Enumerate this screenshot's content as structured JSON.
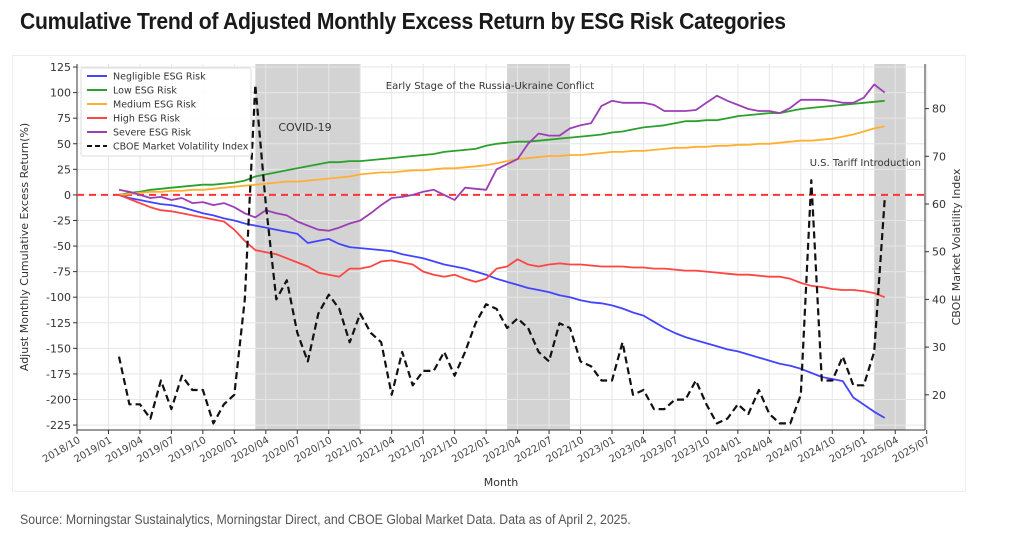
{
  "title": "Cumulative Trend of Adjusted Monthly Excess Return by ESG Risk Categories",
  "source": "Source: Morningstar Sustainalytics, Morningstar Direct, and CBOE Global Market Data. Data as of April 2, 2025.",
  "chart_data": {
    "type": "line",
    "xlabel": "Month",
    "ylabel": "Adjust Monthly Cumulative Excess Return(%)",
    "y2label": "CBOE Market Volatility Index",
    "x_start": "2019/02",
    "x_end": "2025/03",
    "x_ticks": [
      "2018/10",
      "2019/01",
      "2019/04",
      "2019/07",
      "2019/10",
      "2020/01",
      "2020/04",
      "2020/07",
      "2020/10",
      "2021/01",
      "2021/04",
      "2021/07",
      "2021/10",
      "2022/01",
      "2022/04",
      "2022/07",
      "2022/10",
      "2023/01",
      "2023/04",
      "2023/07",
      "2023/10",
      "2024/01",
      "2024/04",
      "2024/07",
      "2024/10",
      "2025/01",
      "2025/04",
      "2025/07"
    ],
    "ylim": [
      -230,
      125
    ],
    "y_ticks": [
      125,
      100,
      75,
      50,
      25,
      0,
      -25,
      -50,
      -75,
      -100,
      -125,
      -150,
      -175,
      -200,
      -225
    ],
    "y2lim": [
      11,
      88
    ],
    "y2_ticks": [
      80,
      70,
      60,
      50,
      40,
      30,
      20
    ],
    "grid": true,
    "legend": "top-left",
    "reference_line": {
      "y": 0,
      "color": "#ff3333",
      "style": "dashed"
    },
    "shaded_periods": [
      {
        "label": "COVID-19",
        "start": "2020/03",
        "end": "2020/12"
      },
      {
        "label": "Early Stage of the Russia-Ukraine Conflict",
        "start": "2022/03",
        "end": "2022/08"
      },
      {
        "label": "U.S. Tariff Introduction",
        "start": "2025/02",
        "end": "2025/04"
      }
    ],
    "series": [
      {
        "name": "Negligible ESG Risk",
        "color": "#4444ff",
        "axis": "left",
        "values": [
          0,
          -3,
          -5,
          -7,
          -9,
          -10,
          -12,
          -15,
          -18,
          -20,
          -23,
          -25,
          -28,
          -30,
          -32,
          -34,
          -36,
          -38,
          -47,
          -45,
          -43,
          -48,
          -51,
          -52,
          -53,
          -54,
          -55,
          -58,
          -60,
          -62,
          -65,
          -68,
          -70,
          -72,
          -75,
          -78,
          -82,
          -85,
          -88,
          -91,
          -93,
          -95,
          -98,
          -100,
          -103,
          -105,
          -106,
          -108,
          -111,
          -115,
          -118,
          -124,
          -130,
          -135,
          -139,
          -142,
          -145,
          -148,
          -151,
          -153,
          -156,
          -159,
          -162,
          -165,
          -167,
          -170,
          -174,
          -178,
          -180,
          -182,
          -198,
          -205,
          -212,
          -218
        ]
      },
      {
        "name": "Low ESG Risk",
        "color": "#2ca02c",
        "axis": "left",
        "values": [
          0,
          2,
          3,
          5,
          6,
          7,
          8,
          9,
          10,
          10,
          11,
          12,
          14,
          18,
          20,
          22,
          24,
          26,
          28,
          30,
          32,
          32,
          33,
          33,
          34,
          35,
          36,
          37,
          38,
          39,
          40,
          42,
          43,
          44,
          45,
          48,
          50,
          51,
          52,
          52,
          53,
          54,
          55,
          56,
          57,
          58,
          59,
          61,
          62,
          64,
          66,
          67,
          68,
          70,
          72,
          72,
          73,
          73,
          75,
          77,
          78,
          79,
          80,
          80,
          82,
          84,
          85,
          86,
          87,
          88,
          89,
          90,
          91,
          92
        ]
      },
      {
        "name": "Medium ESG Risk",
        "color": "#ffb030",
        "axis": "left",
        "values": [
          0,
          1,
          2,
          3,
          3,
          4,
          4,
          5,
          5,
          6,
          7,
          8,
          9,
          10,
          11,
          12,
          13,
          13,
          14,
          15,
          16,
          17,
          18,
          20,
          21,
          22,
          22,
          23,
          24,
          24,
          25,
          26,
          26,
          27,
          28,
          29,
          31,
          33,
          35,
          36,
          37,
          38,
          38,
          39,
          39,
          40,
          41,
          42,
          42,
          43,
          43,
          44,
          45,
          46,
          46,
          47,
          47,
          48,
          48,
          49,
          49,
          50,
          50,
          51,
          52,
          53,
          53,
          54,
          55,
          57,
          59,
          62,
          65,
          67
        ]
      },
      {
        "name": "High ESG Risk",
        "color": "#ff4444",
        "axis": "left",
        "values": [
          0,
          -4,
          -8,
          -12,
          -15,
          -16,
          -18,
          -20,
          -22,
          -24,
          -26,
          -34,
          -45,
          -54,
          -56,
          -58,
          -62,
          -66,
          -70,
          -76,
          -78,
          -80,
          -72,
          -72,
          -70,
          -65,
          -64,
          -66,
          -68,
          -75,
          -78,
          -80,
          -78,
          -82,
          -85,
          -82,
          -72,
          -70,
          -63,
          -68,
          -70,
          -68,
          -67,
          -68,
          -68,
          -69,
          -70,
          -70,
          -70,
          -71,
          -71,
          -72,
          -72,
          -73,
          -74,
          -74,
          -75,
          -76,
          -77,
          -78,
          -78,
          -79,
          -80,
          -80,
          -82,
          -86,
          -89,
          -90,
          -92,
          -93,
          -93,
          -94,
          -96,
          -100
        ]
      },
      {
        "name": "Severe ESG Risk",
        "color": "#9b3fb5",
        "axis": "left",
        "values": [
          5,
          3,
          0,
          -3,
          -2,
          -5,
          -3,
          -8,
          -7,
          -10,
          -8,
          -12,
          -18,
          -22,
          -15,
          -18,
          -20,
          -26,
          -30,
          -34,
          -35,
          -32,
          -28,
          -25,
          -18,
          -10,
          -3,
          -2,
          0,
          3,
          5,
          0,
          -5,
          7,
          6,
          5,
          25,
          30,
          35,
          50,
          60,
          58,
          58,
          65,
          68,
          70,
          87,
          92,
          90,
          90,
          90,
          88,
          82,
          82,
          82,
          83,
          90,
          97,
          92,
          88,
          84,
          82,
          82,
          80,
          85,
          93,
          93,
          93,
          92,
          90,
          90,
          95,
          108,
          100
        ]
      },
      {
        "name": "CBOE Market Volatility Index",
        "color": "#111111",
        "axis": "right",
        "style": "dashed",
        "values": [
          28,
          18,
          18,
          15,
          23,
          17,
          24,
          21,
          21,
          14,
          18,
          20,
          40,
          85,
          60,
          40,
          44,
          33,
          27,
          37,
          41,
          38,
          31,
          37,
          33,
          31,
          20,
          29,
          22,
          25,
          25,
          29,
          24,
          29,
          35,
          39,
          38,
          34,
          36,
          34,
          29,
          27,
          35,
          34,
          27,
          26,
          23,
          23,
          31,
          20,
          21,
          17,
          17,
          19,
          19,
          23,
          18,
          14,
          15,
          18,
          16,
          21,
          16,
          14,
          14,
          20,
          65,
          23,
          23,
          28,
          22,
          22,
          29,
          61
        ]
      }
    ]
  }
}
